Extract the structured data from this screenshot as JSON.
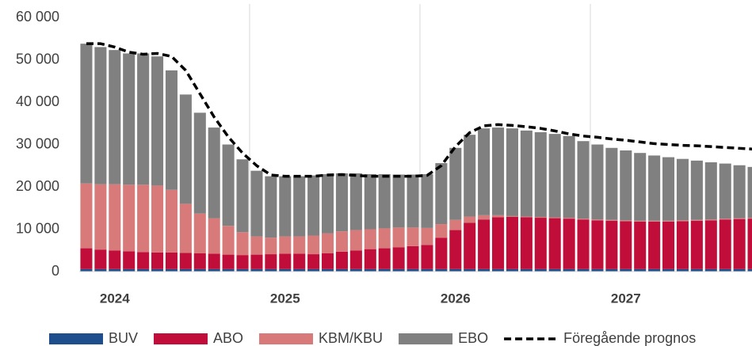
{
  "chart_data": {
    "type": "bar",
    "stacked": true,
    "categories": [
      null,
      null,
      "2024",
      null,
      null,
      null,
      null,
      null,
      null,
      null,
      null,
      null,
      null,
      null,
      "2025",
      null,
      null,
      null,
      null,
      null,
      null,
      null,
      null,
      null,
      null,
      null,
      "2026",
      null,
      null,
      null,
      null,
      null,
      null,
      null,
      null,
      null,
      null,
      null,
      "2027",
      null,
      null,
      null,
      null,
      null,
      null,
      null,
      null,
      null
    ],
    "ylim": [
      0,
      60000
    ],
    "yticks": [
      0,
      {
        "value": 10000,
        "label": "10 000"
      },
      {
        "value": 20000,
        "label": "20 000"
      },
      {
        "value": 30000,
        "label": "30 000"
      },
      {
        "value": 40000,
        "label": "40 000"
      },
      {
        "value": 50000,
        "label": "50 000"
      },
      {
        "value": 60000,
        "label": "60 000"
      }
    ],
    "grid": false,
    "legend": "bottom",
    "series": [
      {
        "name": "BUV",
        "color": "#1f4e8c",
        "values": [
          600,
          600,
          600,
          600,
          600,
          600,
          600,
          600,
          600,
          600,
          600,
          600,
          600,
          600,
          600,
          600,
          600,
          600,
          600,
          600,
          600,
          600,
          600,
          600,
          600,
          600,
          600,
          600,
          600,
          600,
          600,
          600,
          600,
          600,
          600,
          600,
          600,
          600,
          600,
          600,
          600,
          600,
          600,
          600,
          600,
          600,
          600,
          600
        ]
      },
      {
        "name": "ABO",
        "color": "#c00d3a",
        "values": [
          4900,
          4600,
          4400,
          4200,
          4000,
          3900,
          3900,
          3800,
          3700,
          3600,
          3400,
          3300,
          3400,
          3500,
          3600,
          3600,
          3500,
          3700,
          4100,
          4400,
          4700,
          4900,
          5100,
          5400,
          5700,
          7400,
          9200,
          10900,
          11700,
          12200,
          12300,
          12200,
          12100,
          12000,
          11900,
          11700,
          11500,
          11400,
          11300,
          11200,
          11200,
          11200,
          11300,
          11400,
          11500,
          11700,
          11800,
          11900
        ]
      },
      {
        "name": "KBM/KBU",
        "color": "#d97a7a",
        "values": [
          15300,
          15400,
          15600,
          15700,
          15900,
          15800,
          14800,
          11600,
          9400,
          8400,
          6800,
          5400,
          4300,
          3900,
          4100,
          4100,
          4400,
          4700,
          4800,
          4800,
          4700,
          4700,
          4700,
          4400,
          4000,
          3200,
          2400,
          1500,
          1000,
          500,
          200,
          200,
          200,
          200,
          200,
          200,
          200,
          200,
          200,
          200,
          200,
          200,
          200,
          200,
          200,
          200,
          200,
          200
        ]
      },
      {
        "name": "EBO",
        "color": "#808080",
        "values": [
          33000,
          32400,
          31700,
          31000,
          31000,
          30500,
          28200,
          25800,
          23800,
          21400,
          19200,
          17200,
          15500,
          14500,
          14200,
          14200,
          14200,
          14000,
          13700,
          13400,
          13000,
          12800,
          12500,
          12500,
          12700,
          14400,
          17000,
          19300,
          20500,
          20700,
          20700,
          20300,
          20000,
          19700,
          19300,
          18300,
          17700,
          17000,
          16500,
          16000,
          15400,
          15000,
          14500,
          14000,
          13500,
          13000,
          12500,
          12000
        ]
      },
      {
        "name": "Föregående prognos",
        "type": "line",
        "dashed": true,
        "color": "#000000",
        "values": [
          53800,
          53800,
          53000,
          51800,
          51300,
          51500,
          50800,
          47500,
          42000,
          36500,
          31800,
          28000,
          25000,
          22800,
          22500,
          22500,
          22500,
          22800,
          22900,
          22700,
          22500,
          22500,
          22500,
          22500,
          22700,
          25000,
          29500,
          32800,
          34400,
          34700,
          34500,
          34200,
          33800,
          33200,
          32500,
          32000,
          31700,
          31300,
          31000,
          30600,
          30200,
          30000,
          29800,
          29700,
          29500,
          29300,
          29100,
          28900
        ]
      }
    ]
  }
}
